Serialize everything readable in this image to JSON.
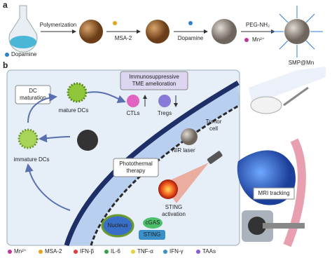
{
  "panel_a": {
    "label": "a",
    "flask_label": "Dopamine",
    "step1": "Polymerization",
    "step2": "MSA-2",
    "step3": "Dopamine",
    "step4_top": "PEG-NH₂",
    "step4_bottom": "Mn²⁺",
    "product": "SMP@Mn"
  },
  "panel_b": {
    "label": "b",
    "dc_maturation": [
      "DC",
      "maturation"
    ],
    "mature_dcs": "mature DCs",
    "immature_dcs": "immature DCs",
    "tme": [
      "Immunosuppressive",
      "TME amelioration"
    ],
    "ctls": "CTLs",
    "tregs": "Tregs",
    "tumor_cell": [
      "Tumor",
      "cell"
    ],
    "nir_laser": "NIR laser",
    "photothermal": [
      "Photothermal",
      "therapy"
    ],
    "sting_activation": [
      "STING",
      "activation"
    ],
    "cgas": "cGAS",
    "sting": "STING",
    "nucleus": "Nucleus",
    "mri": "MRI tracking"
  },
  "legend": [
    "Mn²⁺",
    "MSA-2",
    "IFN-β",
    "IL-6",
    "TNF-α",
    "IFN-γ",
    "TAAs"
  ]
}
